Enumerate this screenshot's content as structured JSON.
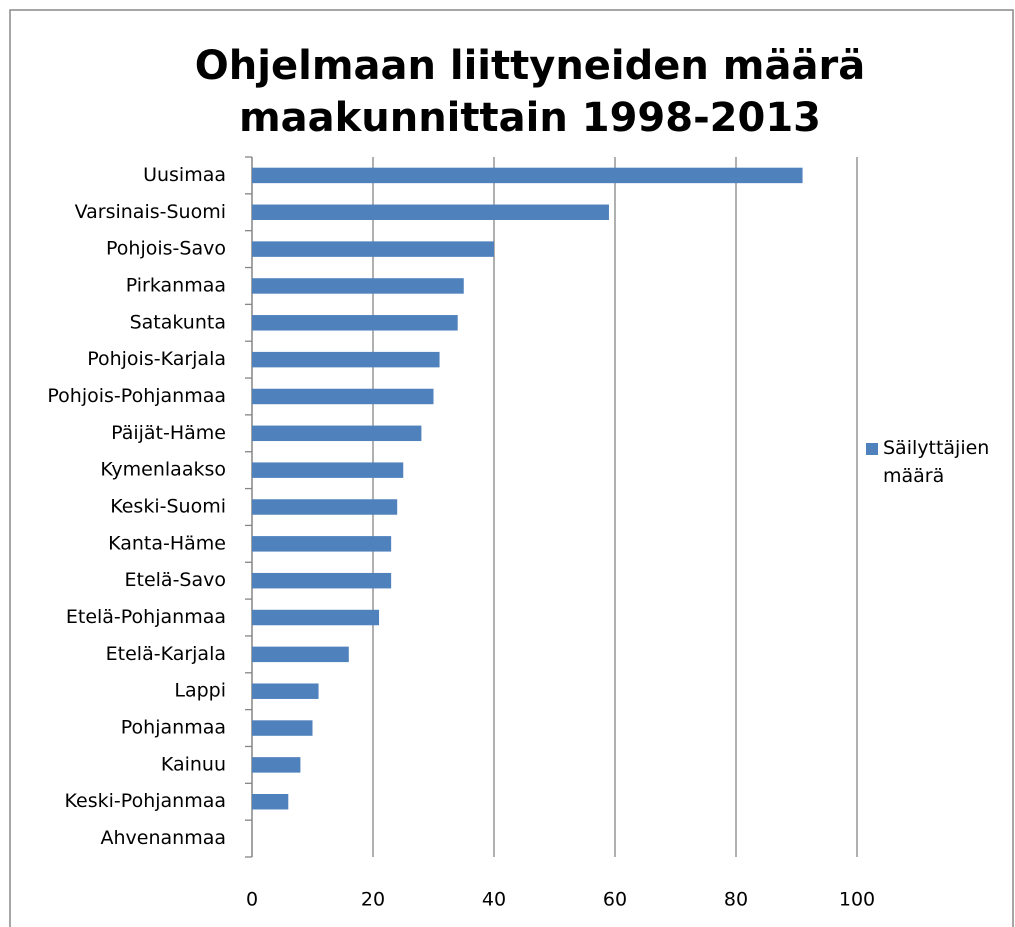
{
  "chart_data": {
    "type": "bar",
    "orientation": "horizontal",
    "title": "Ohjelmaan liittyneiden määrä maakunnittain 1998-2013",
    "categories": [
      "Uusimaa",
      "Varsinais-Suomi",
      "Pohjois-Savo",
      "Pirkanmaa",
      "Satakunta",
      "Pohjois-Karjala",
      "Pohjois-Pohjanmaa",
      "Päijät-Häme",
      "Kymenlaakso",
      "Keski-Suomi",
      "Kanta-Häme",
      "Etelä-Savo",
      "Etelä-Pohjanmaa",
      "Etelä-Karjala",
      "Lappi",
      "Pohjanmaa",
      "Kainuu",
      "Keski-Pohjanmaa",
      "Ahvenanmaa"
    ],
    "series": [
      {
        "name": "Säilyttäjien määrä",
        "color": "#4f81bd",
        "values": [
          91,
          59,
          40,
          35,
          34,
          31,
          30,
          28,
          25,
          24,
          23,
          23,
          21,
          16,
          11,
          10,
          8,
          6,
          0
        ]
      }
    ],
    "xlim": [
      0,
      100
    ],
    "xticks": [
      0,
      20,
      40,
      60,
      80,
      100
    ],
    "grid": true,
    "legend": "right"
  }
}
